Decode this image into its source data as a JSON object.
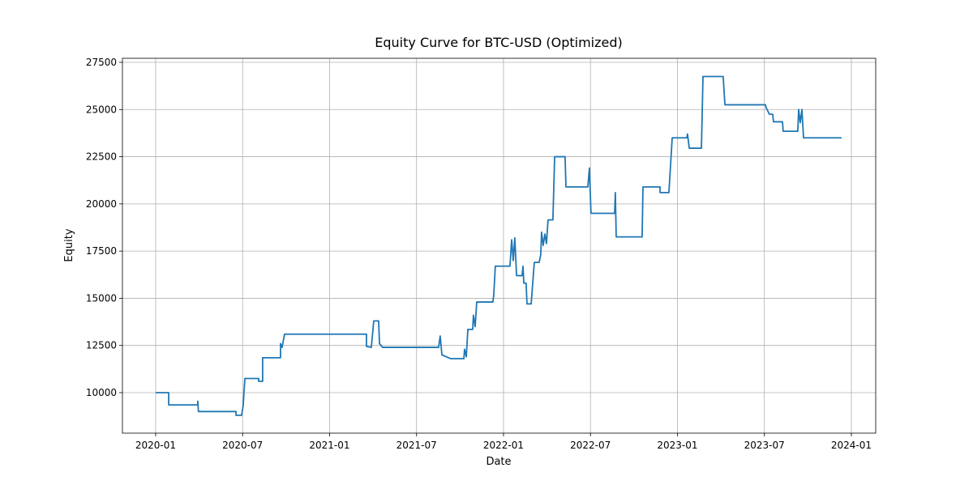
{
  "chart_data": {
    "type": "line",
    "title": "Equity Curve for BTC-USD (Optimized)",
    "x_label": "Date",
    "y_label": "Equity",
    "color": "#1f77b4",
    "grid": true,
    "xlim": [
      2019.809,
      2024.14
    ],
    "xticks": [
      {
        "value": 2020.0,
        "label": "2020-01"
      },
      {
        "value": 2020.5,
        "label": "2020-07"
      },
      {
        "value": 2021.0,
        "label": "2021-01"
      },
      {
        "value": 2021.5,
        "label": "2021-07"
      },
      {
        "value": 2022.0,
        "label": "2022-01"
      },
      {
        "value": 2022.5,
        "label": "2022-07"
      },
      {
        "value": 2023.0,
        "label": "2023-01"
      },
      {
        "value": 2023.5,
        "label": "2023-07"
      },
      {
        "value": 2024.0,
        "label": "2024-01"
      }
    ],
    "ylim": [
      7855,
      27714
    ],
    "yticks": [
      10000,
      12500,
      15000,
      17500,
      20000,
      22500,
      25000,
      27500
    ],
    "x": [
      2020.0,
      2020.075,
      2020.075,
      2020.242,
      2020.242,
      2020.246,
      2020.462,
      2020.462,
      2020.494,
      2020.503,
      2020.513,
      2020.592,
      2020.592,
      2020.615,
      2020.615,
      2020.718,
      2020.718,
      2020.727,
      2020.741,
      2021.212,
      2021.212,
      2021.24,
      2021.254,
      2021.282,
      2021.287,
      2021.305,
      2021.627,
      2021.636,
      2021.646,
      2021.697,
      2021.772,
      2021.776,
      2021.786,
      2021.795,
      2021.823,
      2021.827,
      2021.837,
      2021.846,
      2021.939,
      2021.944,
      2021.953,
      2022.037,
      2022.047,
      2022.056,
      2022.065,
      2022.075,
      2022.107,
      2022.112,
      2022.117,
      2022.13,
      2022.135,
      2022.159,
      2022.168,
      2022.177,
      2022.205,
      2022.214,
      2022.219,
      2022.228,
      2022.238,
      2022.247,
      2022.256,
      2022.284,
      2022.294,
      2022.354,
      2022.359,
      2022.485,
      2022.494,
      2022.503,
      2022.639,
      2022.643,
      2022.648,
      2022.797,
      2022.802,
      2022.9,
      2022.9,
      2022.951,
      2022.97,
      2023.054,
      2023.058,
      2023.068,
      2023.138,
      2023.147,
      2023.263,
      2023.273,
      2023.506,
      2023.51,
      2023.529,
      2023.548,
      2023.552,
      2023.604,
      2023.608,
      2023.692,
      2023.697,
      2023.706,
      2023.716,
      2023.725,
      2023.944
    ],
    "values": [
      10000,
      10000,
      9350,
      9350,
      9550,
      9000,
      9000,
      8800,
      8800,
      9300,
      10750,
      10750,
      10600,
      10600,
      11850,
      11850,
      12600,
      12400,
      13100,
      13100,
      12450,
      12400,
      13800,
      13800,
      12600,
      12400,
      12400,
      13000,
      12000,
      11800,
      11800,
      12300,
      11900,
      13350,
      13350,
      14100,
      13500,
      14800,
      14800,
      15200,
      16700,
      16700,
      18100,
      17000,
      18200,
      16200,
      16200,
      16700,
      15800,
      15800,
      14700,
      14700,
      15800,
      16900,
      16900,
      17300,
      18500,
      17800,
      18400,
      17900,
      19150,
      19150,
      22500,
      22500,
      20900,
      20900,
      21900,
      19500,
      19500,
      20600,
      18250,
      18250,
      20900,
      20900,
      20600,
      20600,
      23500,
      23500,
      23700,
      22950,
      22950,
      26750,
      26750,
      25250,
      25250,
      25100,
      24750,
      24750,
      24350,
      24350,
      23850,
      23850,
      25000,
      24300,
      25000,
      23500,
      23500
    ]
  }
}
